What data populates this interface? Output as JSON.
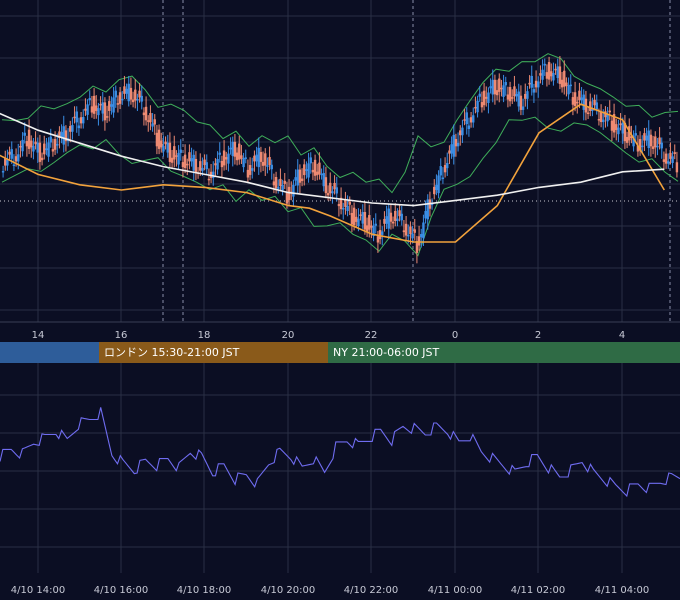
{
  "colors": {
    "background": "#0b0e23",
    "grid": "#2a2f45",
    "candle_up": "#3a8ee6",
    "candle_down": "#ee8a72",
    "ma_short": "#f2a23c",
    "ma_long": "#f0f0f0",
    "bollinger": "#3fae5a",
    "oscillator": "#6f6cf0",
    "session_tokyo": "#2e5d9a",
    "session_london": "#8a5a1a",
    "session_ny": "#2f6b45"
  },
  "price_chart": {
    "x_ticks": [
      "14",
      "16",
      "18",
      "20",
      "22",
      "0",
      "2",
      "4"
    ]
  },
  "sessions": [
    {
      "label": "",
      "color_key": "session_tokyo"
    },
    {
      "label": "ロンドン 15:30-21:00 JST",
      "color_key": "session_london"
    },
    {
      "label": "NY 21:00-06:00 JST",
      "color_key": "session_ny"
    }
  ],
  "oscillator": {
    "x_ticks": [
      "4/10 14:00",
      "4/10 16:00",
      "4/10 18:00",
      "4/10 20:00",
      "4/10 22:00",
      "4/11 00:00",
      "4/11 02:00",
      "4/11 04:00"
    ]
  },
  "chart_data": [
    {
      "type": "line",
      "title": "",
      "series": [
        {
          "values_at_hours": [
            13.0,
            14.0,
            15.0,
            16.0,
            17.0,
            18.0,
            19.0,
            20.0,
            20.5,
            21.0,
            22.0,
            23.0,
            24.0,
            25.0,
            26.0,
            27.0,
            28.0,
            29.0
          ],
          "values": [
            64,
            56,
            52,
            50,
            52,
            51,
            49,
            44,
            43,
            40,
            33,
            30,
            30,
            44,
            72,
            83,
            77,
            50
          ],
          "color": "#f2a23c"
        },
        {
          "values_at_hours": [
            13.0,
            14.0,
            15.0,
            16.0,
            17.0,
            18.0,
            19.0,
            20.0,
            22.0,
            23.0,
            24.0,
            25.0,
            26.0,
            27.0,
            28.0,
            29.0
          ],
          "values": [
            80,
            73,
            68,
            63,
            59,
            56,
            53,
            49,
            45,
            44,
            46,
            48,
            51,
            53,
            57,
            58
          ],
          "color": "#f0f0f0"
        }
      ],
      "candle_close_path": [
        60,
        63,
        70,
        64,
        68,
        72,
        78,
        83,
        80,
        86,
        88,
        82,
        70,
        64,
        62,
        60,
        57,
        62,
        66,
        58,
        64,
        55,
        48,
        56,
        60,
        52,
        47,
        40,
        38,
        33,
        41,
        37,
        29,
        46,
        58,
        70,
        78,
        85,
        90,
        88,
        84,
        92,
        96,
        94,
        86,
        83,
        80,
        76,
        72,
        68,
        70,
        64,
        60
      ],
      "x_ticks": [
        "14",
        "16",
        "18",
        "20",
        "22",
        "0",
        "2",
        "4"
      ]
    },
    {
      "type": "line",
      "title": "",
      "x_ticks": [
        "4/10 14:00",
        "4/10 16:00",
        "4/10 18:00",
        "4/10 20:00",
        "4/10 22:00",
        "4/11 00:00",
        "4/11 02:00",
        "4/11 04:00"
      ],
      "values": [
        58,
        64,
        60,
        70,
        74,
        80,
        72,
        86,
        90,
        96,
        60,
        52,
        46,
        54,
        50,
        56,
        48,
        62,
        58,
        44,
        50,
        38,
        42,
        34,
        52,
        62,
        58,
        48,
        56,
        44,
        66,
        72,
        68,
        74,
        80,
        72,
        84,
        82,
        78,
        84,
        80,
        70,
        76,
        62,
        56,
        50,
        44,
        52,
        58,
        48,
        40,
        46,
        54,
        44,
        38,
        32,
        28,
        34,
        30,
        36,
        40
      ]
    }
  ]
}
